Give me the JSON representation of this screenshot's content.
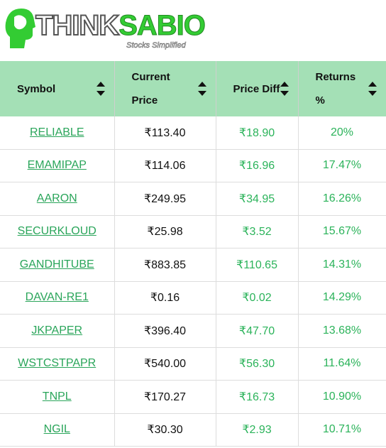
{
  "logo": {
    "part1": "THINK",
    "part2": "SABIO",
    "tagline": "Stocks Simplified"
  },
  "table": {
    "headers": [
      "Symbol",
      "Current Price",
      "Price Diff",
      "Returns %"
    ],
    "rows": [
      [
        "RELIABLE",
        "₹113.40",
        "₹18.90",
        "20%"
      ],
      [
        "EMAMIPAP",
        "₹114.06",
        "₹16.96",
        "17.47%"
      ],
      [
        "AARON",
        "₹249.95",
        "₹34.95",
        "16.26%"
      ],
      [
        "SECURKLOUD",
        "₹25.98",
        "₹3.52",
        "15.67%"
      ],
      [
        "GANDHITUBE",
        "₹883.85",
        "₹110.65",
        "14.31%"
      ],
      [
        "DAVAN-RE1",
        "₹0.16",
        "₹0.02",
        "14.29%"
      ],
      [
        "JKPAPER",
        "₹396.40",
        "₹47.70",
        "13.68%"
      ],
      [
        "WSTCSTPAPR",
        "₹540.00",
        "₹56.30",
        "11.64%"
      ],
      [
        "TNPL",
        "₹170.27",
        "₹16.73",
        "10.90%"
      ],
      [
        "NGIL",
        "₹30.30",
        "₹2.93",
        "10.71%"
      ]
    ]
  }
}
